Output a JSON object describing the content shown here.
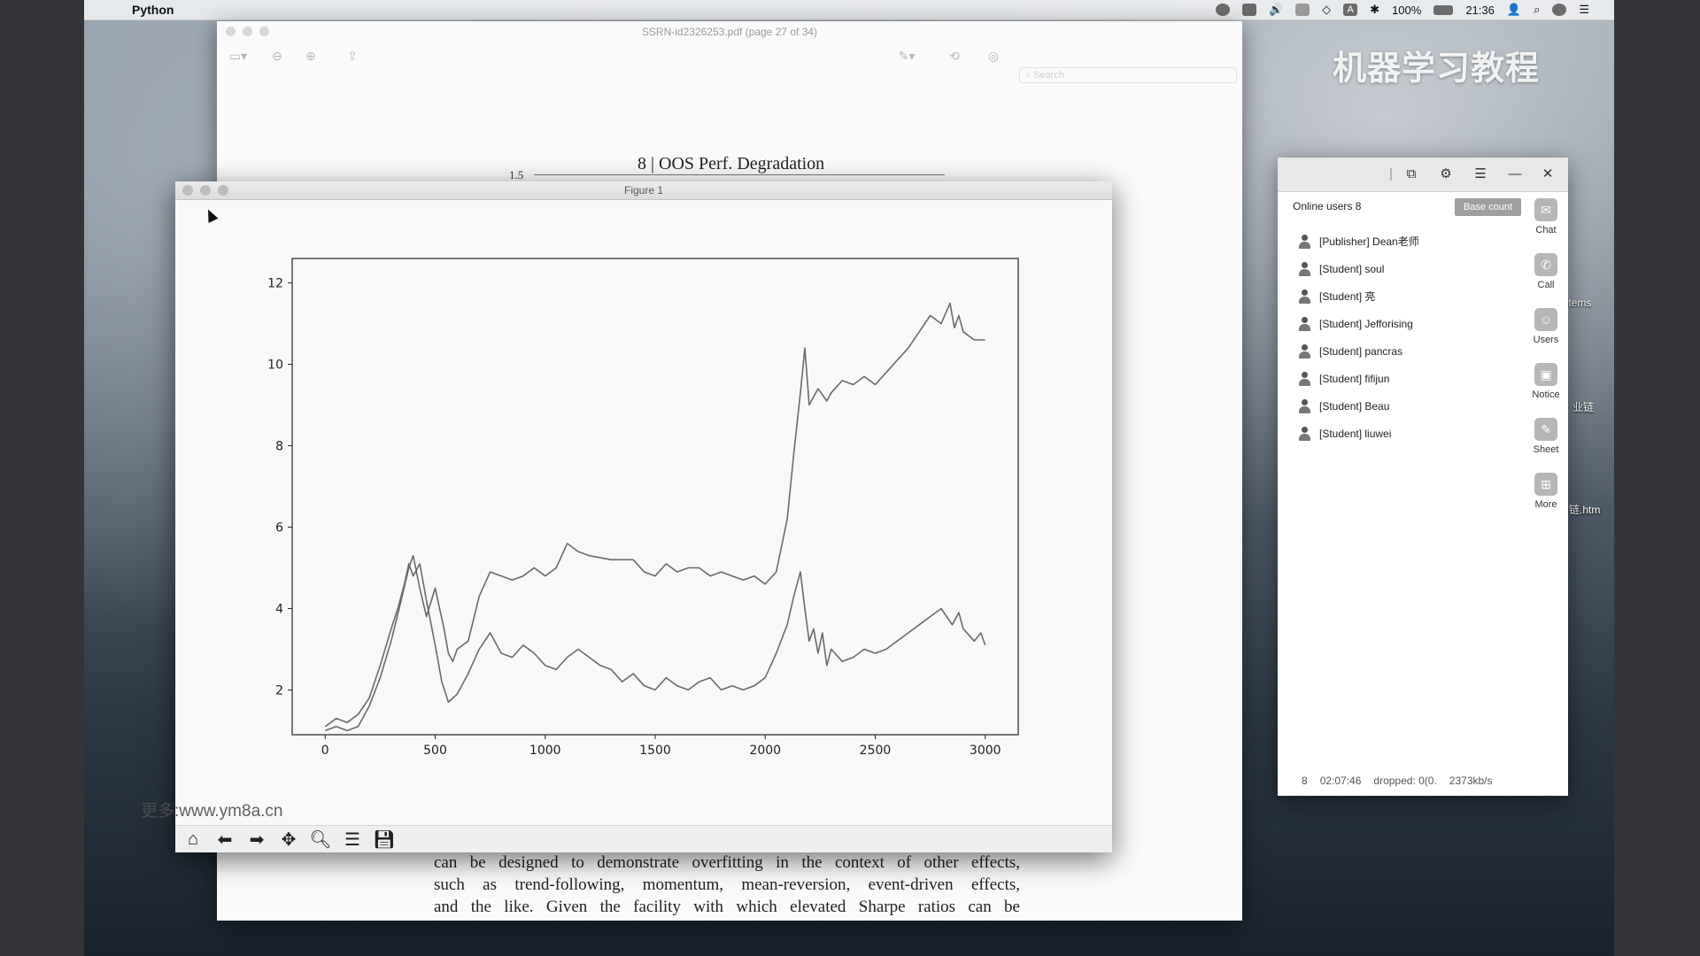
{
  "menubar": {
    "app_name": "Python",
    "battery": "100%",
    "clock": "21:36",
    "input_source": "A"
  },
  "pdf": {
    "title": "SSRN-id2326253.pdf (page 27 of 34)",
    "search_placeholder": "Search",
    "heading": "8 | OOS Perf. Degradation",
    "axis_tick": "1.5",
    "body_lines": [
      "can be designed to demonstrate overfitting in the context of other effects,",
      "such as trend-following, momentum, mean-reversion, event-driven effects,",
      "and the like. Given the facility with which elevated Sharpe ratios can be"
    ]
  },
  "figure": {
    "title": "Figure 1",
    "toolbar": [
      "home-icon",
      "back-arrow-icon",
      "forward-arrow-icon",
      "pan-icon",
      "zoom-icon",
      "configure-subplots-icon",
      "save-icon"
    ]
  },
  "chart_data": {
    "type": "line",
    "xlim": [
      -150,
      3150
    ],
    "ylim": [
      0.9,
      12.6
    ],
    "xticks": [
      0,
      500,
      1000,
      1500,
      2000,
      2500,
      3000
    ],
    "yticks": [
      2,
      4,
      6,
      8,
      10,
      12
    ],
    "grid": false,
    "series": [
      {
        "x": [
          0,
          50,
          100,
          150,
          200,
          250,
          300,
          350,
          380,
          400,
          430,
          460,
          500,
          540,
          560,
          580,
          600,
          650,
          700,
          750,
          800,
          850,
          900,
          950,
          1000,
          1050,
          1100,
          1150,
          1200,
          1300,
          1400,
          1450,
          1500,
          1550,
          1600,
          1650,
          1700,
          1750,
          1800,
          1850,
          1900,
          1950,
          2000,
          2050,
          2100,
          2130,
          2160,
          2180,
          2200,
          2220,
          2240,
          2280,
          2300,
          2350,
          2400,
          2450,
          2500,
          2550,
          2600,
          2650,
          2700,
          2750,
          2800,
          2840,
          2860,
          2880,
          2900,
          2950,
          3000
        ],
        "values": [
          1.0,
          1.1,
          1.0,
          1.1,
          1.6,
          2.3,
          3.2,
          4.3,
          5.0,
          5.3,
          4.5,
          3.8,
          4.5,
          3.5,
          2.9,
          2.7,
          3.0,
          3.2,
          4.3,
          4.9,
          4.8,
          4.7,
          4.8,
          5.0,
          4.8,
          5.0,
          5.6,
          5.4,
          5.3,
          5.2,
          5.2,
          4.9,
          4.8,
          5.1,
          4.9,
          5.0,
          5.0,
          4.8,
          4.9,
          4.8,
          4.7,
          4.8,
          4.6,
          4.9,
          6.2,
          7.8,
          9.3,
          10.4,
          9.0,
          9.2,
          9.4,
          9.1,
          9.3,
          9.6,
          9.5,
          9.7,
          9.5,
          9.8,
          10.1,
          10.4,
          10.8,
          11.2,
          11.0,
          11.5,
          10.9,
          11.2,
          10.8,
          10.6,
          10.6
        ]
      },
      {
        "x": [
          0,
          50,
          100,
          150,
          200,
          250,
          300,
          330,
          360,
          380,
          400,
          430,
          460,
          500,
          530,
          560,
          600,
          650,
          700,
          750,
          800,
          850,
          900,
          950,
          1000,
          1050,
          1100,
          1150,
          1200,
          1250,
          1300,
          1350,
          1400,
          1450,
          1500,
          1550,
          1600,
          1650,
          1700,
          1750,
          1800,
          1850,
          1900,
          1950,
          2000,
          2050,
          2100,
          2130,
          2160,
          2180,
          2200,
          2220,
          2240,
          2260,
          2280,
          2300,
          2350,
          2400,
          2450,
          2500,
          2550,
          2600,
          2650,
          2700,
          2750,
          2800,
          2850,
          2880,
          2900,
          2950,
          2980,
          3000
        ],
        "values": [
          1.1,
          1.3,
          1.2,
          1.4,
          1.8,
          2.6,
          3.5,
          4.0,
          4.6,
          5.1,
          4.8,
          5.1,
          4.2,
          3.1,
          2.2,
          1.7,
          1.9,
          2.4,
          3.0,
          3.4,
          2.9,
          2.8,
          3.1,
          2.9,
          2.6,
          2.5,
          2.8,
          3.0,
          2.8,
          2.6,
          2.5,
          2.2,
          2.4,
          2.1,
          2.0,
          2.3,
          2.1,
          2.0,
          2.2,
          2.3,
          2.0,
          2.1,
          2.0,
          2.1,
          2.3,
          2.9,
          3.6,
          4.3,
          4.9,
          4.0,
          3.2,
          3.5,
          2.9,
          3.4,
          2.6,
          3.0,
          2.7,
          2.8,
          3.0,
          2.9,
          3.0,
          3.2,
          3.4,
          3.6,
          3.8,
          4.0,
          3.6,
          3.9,
          3.5,
          3.2,
          3.4,
          3.1
        ]
      }
    ]
  },
  "panel": {
    "online_users": "Online users 8",
    "base_count": "Base count",
    "users": [
      "[Publisher] Dean老师",
      "[Student] soul",
      "[Student] 亮",
      "[Student] Jefforising",
      "[Student] pancras",
      "[Student] fifijun",
      "[Student] Beau",
      "[Student] liuwei"
    ],
    "side": [
      {
        "label": "Chat",
        "icon": "chat-icon"
      },
      {
        "label": "Call",
        "icon": "phone-icon"
      },
      {
        "label": "Users",
        "icon": "users-icon"
      },
      {
        "label": "Notice",
        "icon": "notice-icon"
      },
      {
        "label": "Sheet",
        "icon": "sheet-icon"
      },
      {
        "label": "More",
        "icon": "more-icon"
      }
    ],
    "status": {
      "count": "8",
      "time": "02:07:46",
      "dropped": "dropped: 0(0.",
      "rate": "2373kb/s"
    }
  },
  "desktop": {
    "watermark": "机器学习教程",
    "url_watermark": "更多:www.ym8a.cn",
    "labels": [
      "Items",
      "业链",
      "链.htm"
    ]
  }
}
